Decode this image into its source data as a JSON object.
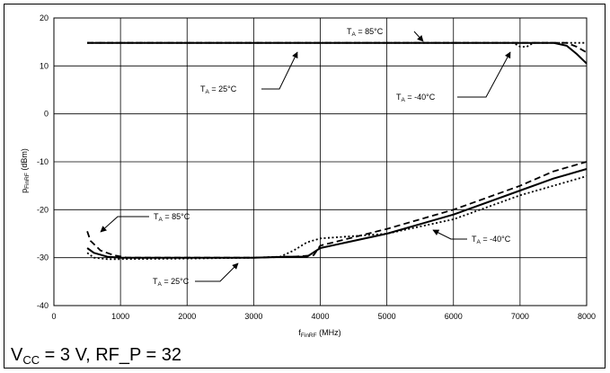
{
  "chart_data": {
    "type": "line",
    "xlabel": {
      "main": "f",
      "sub": "FinRF",
      "tail": " (MHz)"
    },
    "ylabel": {
      "main": "p",
      "sub": "FinRF",
      "tail": " (dBm)"
    },
    "xlim": [
      0,
      8000
    ],
    "ylim": [
      -40,
      20
    ],
    "x_ticks": [
      "0",
      "1000",
      "2000",
      "3000",
      "4000",
      "5000",
      "6000",
      "7000",
      "8000"
    ],
    "y_ticks": [
      "-40",
      "-30",
      "-20",
      "-10",
      "0",
      "10",
      "20"
    ],
    "grid": true,
    "series": [
      {
        "group": "upper",
        "style": "solid",
        "x": [
          500,
          7000,
          7500,
          7700,
          7850,
          8000
        ],
        "y": [
          14.8,
          14.8,
          14.8,
          14.2,
          12.5,
          10.5
        ]
      },
      {
        "group": "upper",
        "style": "dashed",
        "x": [
          500,
          7000,
          7500,
          7700,
          7850,
          8000
        ],
        "y": [
          14.8,
          14.8,
          14.8,
          14.8,
          14.0,
          12.8
        ]
      },
      {
        "group": "upper",
        "style": "dotted",
        "x": [
          500,
          6900,
          7000,
          7100,
          7200,
          7500,
          8000
        ],
        "y": [
          14.8,
          14.8,
          14.0,
          14.0,
          14.8,
          14.8,
          14.8
        ]
      },
      {
        "group": "lower",
        "style": "solid",
        "x": [
          500,
          600,
          800,
          1000,
          2000,
          3000,
          3500,
          3800,
          4000,
          5000,
          6000,
          7000,
          7500,
          8000
        ],
        "y": [
          -28.0,
          -29.0,
          -29.8,
          -30.0,
          -30.0,
          -30.0,
          -29.8,
          -29.8,
          -28.0,
          -25.0,
          -21.0,
          -16.0,
          -13.5,
          -11.5
        ]
      },
      {
        "group": "lower",
        "style": "dashed",
        "x": [
          500,
          550,
          700,
          900,
          1100,
          2000,
          3000,
          3600,
          3900,
          4000,
          5000,
          6000,
          7000,
          7500,
          8000
        ],
        "y": [
          -24.5,
          -26.5,
          -28.5,
          -29.5,
          -30.0,
          -30.0,
          -30.0,
          -29.8,
          -29.5,
          -27.5,
          -24.0,
          -20.0,
          -15.0,
          -12.0,
          -10.0
        ]
      },
      {
        "group": "lower",
        "style": "dotted",
        "x": [
          500,
          600,
          800,
          1000,
          2000,
          3000,
          3400,
          3600,
          3800,
          4000,
          4500,
          5000,
          6000,
          7000,
          7500,
          8000
        ],
        "y": [
          -29.0,
          -30.0,
          -30.3,
          -30.3,
          -30.2,
          -30.0,
          -29.8,
          -28.5,
          -26.8,
          -26.0,
          -25.5,
          -25.0,
          -22.0,
          -17.0,
          -15.0,
          -13.0
        ]
      }
    ],
    "annotations": [
      {
        "id": "u85",
        "pre": "T",
        "sub": "A",
        "post": " =  85°C"
      },
      {
        "id": "u25",
        "pre": "T",
        "sub": "A",
        "post": " =  25°C"
      },
      {
        "id": "um40",
        "pre": "T",
        "sub": "A",
        "post": " = -40°C"
      },
      {
        "id": "l85",
        "pre": "T",
        "sub": "A",
        "post": " = 85°C"
      },
      {
        "id": "l25",
        "pre": "T",
        "sub": "A",
        "post": " = 25°C"
      },
      {
        "id": "lm40",
        "pre": "T",
        "sub": "A",
        "post": " = -40°C"
      }
    ]
  },
  "caption": {
    "pre": "V",
    "sub": "CC",
    "post": " = 3 V, RF_P = 32"
  }
}
